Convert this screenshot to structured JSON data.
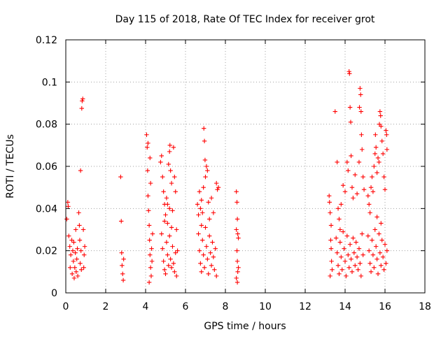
{
  "chart_data": {
    "type": "scatter",
    "title": "Day 115 of 2018, Rate Of TEC Index for receiver grot",
    "xlabel": "GPS time / hours",
    "ylabel": "ROTI / TECUs",
    "xlim": [
      0,
      18
    ],
    "ylim": [
      0,
      0.12
    ],
    "xticks": [
      0,
      2,
      4,
      6,
      8,
      10,
      12,
      14,
      16,
      18
    ],
    "xtick_labels": [
      "0",
      "2",
      "4",
      "6",
      "8",
      "10",
      "12",
      "14",
      "16",
      "18"
    ],
    "yticks": [
      0,
      0.02,
      0.04,
      0.06,
      0.08,
      0.1,
      0.12
    ],
    "ytick_labels": [
      "0",
      "0.02",
      "0.04",
      "0.06",
      "0.08",
      "0.1",
      "0.12"
    ],
    "grid": true,
    "marker": "+",
    "color": "#ff0000",
    "series": [
      {
        "name": "ROTI",
        "points": [
          [
            0.05,
            0.035
          ],
          [
            0.1,
            0.043
          ],
          [
            0.12,
            0.041
          ],
          [
            0.15,
            0.027
          ],
          [
            0.2,
            0.022
          ],
          [
            0.22,
            0.012
          ],
          [
            0.25,
            0.018
          ],
          [
            0.3,
            0.025
          ],
          [
            0.32,
            0.009
          ],
          [
            0.35,
            0.02
          ],
          [
            0.38,
            0.015
          ],
          [
            0.4,
            0.024
          ],
          [
            0.42,
            0.007
          ],
          [
            0.45,
            0.012
          ],
          [
            0.48,
            0.019
          ],
          [
            0.5,
            0.03
          ],
          [
            0.52,
            0.01
          ],
          [
            0.55,
            0.016
          ],
          [
            0.58,
            0.021
          ],
          [
            0.6,
            0.008
          ],
          [
            0.65,
            0.038
          ],
          [
            0.68,
            0.032
          ],
          [
            0.7,
            0.025
          ],
          [
            0.72,
            0.014
          ],
          [
            0.74,
            0.058
          ],
          [
            0.76,
            0.02
          ],
          [
            0.78,
            0.011
          ],
          [
            0.8,
            0.0875
          ],
          [
            0.82,
            0.091
          ],
          [
            0.85,
            0.092
          ],
          [
            0.88,
            0.03
          ],
          [
            0.9,
            0.012
          ],
          [
            0.92,
            0.018
          ],
          [
            0.95,
            0.022
          ],
          [
            2.75,
            0.055
          ],
          [
            2.78,
            0.034
          ],
          [
            2.8,
            0.019
          ],
          [
            2.82,
            0.013
          ],
          [
            2.85,
            0.009
          ],
          [
            2.88,
            0.006
          ],
          [
            2.9,
            0.016
          ],
          [
            4.05,
            0.075
          ],
          [
            4.08,
            0.069
          ],
          [
            4.1,
            0.058
          ],
          [
            4.12,
            0.046
          ],
          [
            4.15,
            0.039
          ],
          [
            4.18,
            0.032
          ],
          [
            4.2,
            0.025
          ],
          [
            4.22,
            0.018
          ],
          [
            4.25,
            0.012
          ],
          [
            4.28,
            0.008
          ],
          [
            4.3,
            0.021
          ],
          [
            4.32,
            0.015
          ],
          [
            4.35,
            0.028
          ],
          [
            4.18,
            0.005
          ],
          [
            4.22,
            0.064
          ],
          [
            4.25,
            0.052
          ],
          [
            4.12,
            0.071
          ],
          [
            4.75,
            0.062
          ],
          [
            4.8,
            0.065
          ],
          [
            4.85,
            0.055
          ],
          [
            4.9,
            0.048
          ],
          [
            4.95,
            0.042
          ],
          [
            5.0,
            0.037
          ],
          [
            5.05,
            0.045
          ],
          [
            5.1,
            0.033
          ],
          [
            5.15,
            0.061
          ],
          [
            5.2,
            0.067
          ],
          [
            5.22,
            0.07
          ],
          [
            5.25,
            0.058
          ],
          [
            5.3,
            0.052
          ],
          [
            5.35,
            0.039
          ],
          [
            5.4,
            0.069
          ],
          [
            5.45,
            0.055
          ],
          [
            5.5,
            0.048
          ],
          [
            5.55,
            0.03
          ],
          [
            5.6,
            0.02
          ],
          [
            4.8,
            0.028
          ],
          [
            4.85,
            0.021
          ],
          [
            4.9,
            0.015
          ],
          [
            4.95,
            0.011
          ],
          [
            5.0,
            0.009
          ],
          [
            5.05,
            0.024
          ],
          [
            5.1,
            0.018
          ],
          [
            5.15,
            0.013
          ],
          [
            5.2,
            0.027
          ],
          [
            5.25,
            0.016
          ],
          [
            5.3,
            0.012
          ],
          [
            5.35,
            0.022
          ],
          [
            5.4,
            0.014
          ],
          [
            5.45,
            0.01
          ],
          [
            5.5,
            0.019
          ],
          [
            5.55,
            0.008
          ],
          [
            5.2,
            0.04
          ],
          [
            5.1,
            0.042
          ],
          [
            4.95,
            0.034
          ],
          [
            5.3,
            0.031
          ],
          [
            6.6,
            0.042
          ],
          [
            6.65,
            0.037
          ],
          [
            6.7,
            0.048
          ],
          [
            6.75,
            0.04
          ],
          [
            6.8,
            0.044
          ],
          [
            6.85,
            0.038
          ],
          [
            6.9,
            0.05
          ],
          [
            6.92,
            0.078
          ],
          [
            6.95,
            0.072
          ],
          [
            6.98,
            0.063
          ],
          [
            7.0,
            0.055
          ],
          [
            7.05,
            0.06
          ],
          [
            7.1,
            0.058
          ],
          [
            7.15,
            0.043
          ],
          [
            7.2,
            0.035
          ],
          [
            7.3,
            0.045
          ],
          [
            7.4,
            0.038
          ],
          [
            7.55,
            0.052
          ],
          [
            7.6,
            0.049
          ],
          [
            7.65,
            0.05
          ],
          [
            6.65,
            0.028
          ],
          [
            6.7,
            0.02
          ],
          [
            6.75,
            0.014
          ],
          [
            6.8,
            0.01
          ],
          [
            6.85,
            0.025
          ],
          [
            6.9,
            0.018
          ],
          [
            6.95,
            0.012
          ],
          [
            7.0,
            0.031
          ],
          [
            7.05,
            0.022
          ],
          [
            7.1,
            0.016
          ],
          [
            7.15,
            0.009
          ],
          [
            7.2,
            0.027
          ],
          [
            7.25,
            0.019
          ],
          [
            7.3,
            0.013
          ],
          [
            7.35,
            0.024
          ],
          [
            7.4,
            0.017
          ],
          [
            7.45,
            0.011
          ],
          [
            7.5,
            0.021
          ],
          [
            7.55,
            0.008
          ],
          [
            6.8,
            0.032
          ],
          [
            8.55,
            0.048
          ],
          [
            8.58,
            0.043
          ],
          [
            8.6,
            0.035
          ],
          [
            8.62,
            0.028
          ],
          [
            8.65,
            0.026
          ],
          [
            8.58,
            0.02
          ],
          [
            8.6,
            0.015
          ],
          [
            8.62,
            0.01
          ],
          [
            8.55,
            0.007
          ],
          [
            8.6,
            0.005
          ],
          [
            8.65,
            0.012
          ],
          [
            8.55,
            0.03
          ],
          [
            13.2,
            0.046
          ],
          [
            13.22,
            0.043
          ],
          [
            13.25,
            0.038
          ],
          [
            13.28,
            0.025
          ],
          [
            13.3,
            0.021
          ],
          [
            13.32,
            0.015
          ],
          [
            13.35,
            0.011
          ],
          [
            13.25,
            0.008
          ],
          [
            13.3,
            0.032
          ],
          [
            13.5,
            0.086
          ],
          [
            13.6,
            0.062
          ],
          [
            13.65,
            0.04
          ],
          [
            13.7,
            0.035
          ],
          [
            13.75,
            0.03
          ],
          [
            13.8,
            0.042
          ],
          [
            13.9,
            0.051
          ],
          [
            14.0,
            0.048
          ],
          [
            14.1,
            0.062
          ],
          [
            14.15,
            0.058
          ],
          [
            14.2,
            0.105
          ],
          [
            14.22,
            0.104
          ],
          [
            14.25,
            0.088
          ],
          [
            14.28,
            0.081
          ],
          [
            14.3,
            0.065
          ],
          [
            14.35,
            0.05
          ],
          [
            14.4,
            0.045
          ],
          [
            14.5,
            0.056
          ],
          [
            14.6,
            0.047
          ],
          [
            14.7,
            0.062
          ],
          [
            14.72,
            0.088
          ],
          [
            14.75,
            0.097
          ],
          [
            14.78,
            0.094
          ],
          [
            14.8,
            0.086
          ],
          [
            14.82,
            0.075
          ],
          [
            14.85,
            0.068
          ],
          [
            14.9,
            0.055
          ],
          [
            14.95,
            0.049
          ],
          [
            13.55,
            0.026
          ],
          [
            13.6,
            0.019
          ],
          [
            13.65,
            0.013
          ],
          [
            13.7,
            0.009
          ],
          [
            13.75,
            0.024
          ],
          [
            13.8,
            0.017
          ],
          [
            13.85,
            0.011
          ],
          [
            13.9,
            0.029
          ],
          [
            13.95,
            0.021
          ],
          [
            14.0,
            0.015
          ],
          [
            14.05,
            0.008
          ],
          [
            14.1,
            0.027
          ],
          [
            14.15,
            0.018
          ],
          [
            14.2,
            0.012
          ],
          [
            14.25,
            0.023
          ],
          [
            14.3,
            0.016
          ],
          [
            14.35,
            0.01
          ],
          [
            14.4,
            0.026
          ],
          [
            14.45,
            0.019
          ],
          [
            14.5,
            0.013
          ],
          [
            14.55,
            0.024
          ],
          [
            14.6,
            0.017
          ],
          [
            14.65,
            0.011
          ],
          [
            14.7,
            0.021
          ],
          [
            14.75,
            0.014
          ],
          [
            14.8,
            0.008
          ],
          [
            14.85,
            0.028
          ],
          [
            14.9,
            0.018
          ],
          [
            15.15,
            0.046
          ],
          [
            15.2,
            0.042
          ],
          [
            15.25,
            0.038
          ],
          [
            15.3,
            0.05
          ],
          [
            15.35,
            0.055
          ],
          [
            15.4,
            0.048
          ],
          [
            15.45,
            0.06
          ],
          [
            15.5,
            0.066
          ],
          [
            15.52,
            0.075
          ],
          [
            15.55,
            0.069
          ],
          [
            15.6,
            0.057
          ],
          [
            15.65,
            0.064
          ],
          [
            15.7,
            0.062
          ],
          [
            15.72,
            0.08
          ],
          [
            15.75,
            0.086
          ],
          [
            15.78,
            0.084
          ],
          [
            15.8,
            0.079
          ],
          [
            15.85,
            0.072
          ],
          [
            15.9,
            0.066
          ],
          [
            15.95,
            0.055
          ],
          [
            16.0,
            0.049
          ],
          [
            16.05,
            0.077
          ],
          [
            16.08,
            0.075
          ],
          [
            16.1,
            0.068
          ],
          [
            15.15,
            0.027
          ],
          [
            15.2,
            0.02
          ],
          [
            15.25,
            0.014
          ],
          [
            15.3,
            0.01
          ],
          [
            15.35,
            0.025
          ],
          [
            15.4,
            0.018
          ],
          [
            15.45,
            0.012
          ],
          [
            15.5,
            0.03
          ],
          [
            15.55,
            0.022
          ],
          [
            15.6,
            0.016
          ],
          [
            15.65,
            0.009
          ],
          [
            15.7,
            0.028
          ],
          [
            15.75,
            0.019
          ],
          [
            15.8,
            0.013
          ],
          [
            15.85,
            0.025
          ],
          [
            15.9,
            0.017
          ],
          [
            15.95,
            0.011
          ],
          [
            16.0,
            0.023
          ],
          [
            16.05,
            0.014
          ],
          [
            16.1,
            0.02
          ],
          [
            15.6,
            0.036
          ],
          [
            15.8,
            0.033
          ]
        ]
      }
    ]
  }
}
